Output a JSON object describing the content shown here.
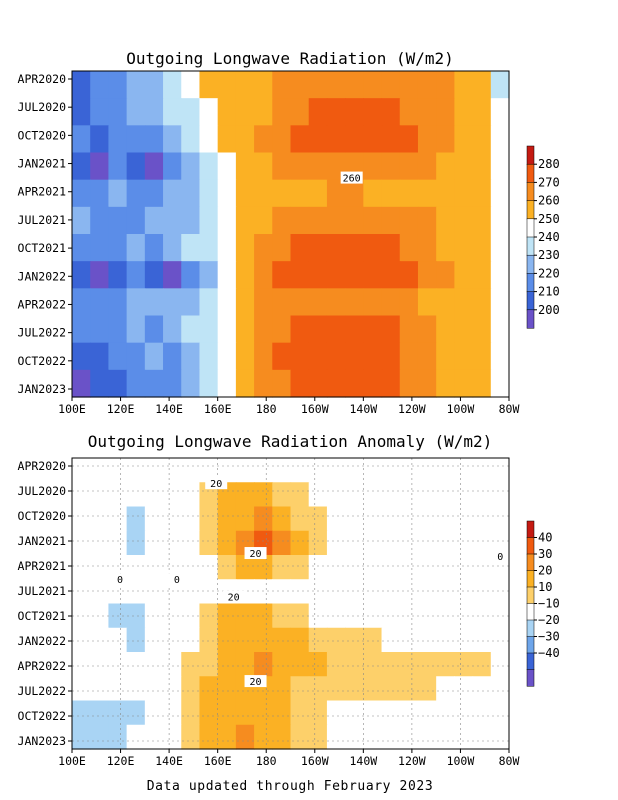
{
  "footer": "Data updated through February 2023",
  "chart_data": [
    {
      "type": "heatmap",
      "title": "Outgoing Longwave Radiation (W/m2)",
      "x_ticks": [
        "100E",
        "120E",
        "140E",
        "160E",
        "180",
        "160W",
        "140W",
        "120W",
        "100W",
        "80W"
      ],
      "y_ticks": [
        "APR2020",
        "JUL2020",
        "OCT2020",
        "JAN2021",
        "APR2021",
        "JUL2021",
        "OCT2021",
        "JAN2022",
        "APR2022",
        "JUL2022",
        "OCT2022",
        "JAN2023"
      ],
      "colorbar_levels": [
        "200",
        "210",
        "220",
        "230",
        "240",
        "250",
        "260",
        "270",
        "280"
      ],
      "colors": [
        "#6a52c8",
        "#3a64d6",
        "#5b8de8",
        "#8ab6f0",
        "#bfe4f6",
        "#ffffff",
        "#fbb124",
        "#f68c1f",
        "#f05a10",
        "#c41a12"
      ],
      "contour_labels": [
        "260"
      ],
      "rows": [
        [
          1,
          2,
          2,
          3,
          3,
          4,
          5,
          6,
          6,
          6,
          6,
          7,
          7,
          7,
          7,
          7,
          7,
          7,
          7,
          7,
          7,
          6,
          6,
          4
        ],
        [
          1,
          2,
          2,
          3,
          3,
          4,
          4,
          5,
          6,
          6,
          6,
          7,
          7,
          8,
          8,
          8,
          8,
          8,
          7,
          7,
          7,
          6,
          6,
          5
        ],
        [
          2,
          1,
          2,
          2,
          2,
          3,
          4,
          5,
          6,
          6,
          7,
          7,
          8,
          8,
          8,
          8,
          8,
          8,
          8,
          7,
          7,
          6,
          6,
          5
        ],
        [
          1,
          0,
          2,
          1,
          0,
          2,
          3,
          4,
          5,
          6,
          6,
          7,
          7,
          7,
          7,
          7,
          7,
          7,
          7,
          7,
          6,
          6,
          6,
          5
        ],
        [
          2,
          2,
          3,
          2,
          2,
          3,
          3,
          4,
          5,
          6,
          6,
          6,
          6,
          6,
          7,
          7,
          6,
          6,
          6,
          6,
          6,
          6,
          6,
          5
        ],
        [
          3,
          2,
          2,
          2,
          3,
          3,
          3,
          4,
          5,
          6,
          6,
          7,
          7,
          7,
          7,
          7,
          7,
          7,
          7,
          7,
          6,
          6,
          6,
          5
        ],
        [
          2,
          2,
          2,
          3,
          2,
          3,
          4,
          4,
          5,
          6,
          7,
          7,
          8,
          8,
          8,
          8,
          8,
          8,
          7,
          7,
          6,
          6,
          6,
          5
        ],
        [
          1,
          0,
          1,
          2,
          1,
          0,
          2,
          3,
          5,
          6,
          7,
          8,
          8,
          8,
          8,
          8,
          8,
          8,
          8,
          7,
          7,
          6,
          6,
          5
        ],
        [
          2,
          2,
          2,
          3,
          3,
          3,
          3,
          4,
          5,
          6,
          7,
          7,
          7,
          7,
          7,
          7,
          7,
          7,
          7,
          6,
          6,
          6,
          6,
          5
        ],
        [
          2,
          2,
          2,
          3,
          2,
          3,
          4,
          4,
          5,
          6,
          7,
          7,
          8,
          8,
          8,
          8,
          8,
          8,
          7,
          7,
          6,
          6,
          6,
          5
        ],
        [
          1,
          1,
          2,
          2,
          3,
          2,
          3,
          4,
          5,
          6,
          7,
          8,
          8,
          8,
          8,
          8,
          8,
          8,
          7,
          7,
          6,
          6,
          6,
          5
        ],
        [
          0,
          1,
          1,
          2,
          2,
          2,
          3,
          4,
          5,
          6,
          7,
          7,
          8,
          8,
          8,
          8,
          8,
          8,
          7,
          7,
          6,
          6,
          6,
          5
        ]
      ]
    },
    {
      "type": "heatmap",
      "title": "Outgoing Longwave Radiation Anomaly (W/m2)",
      "x_ticks": [
        "100E",
        "120E",
        "140E",
        "160E",
        "180",
        "160W",
        "140W",
        "120W",
        "100W",
        "80W"
      ],
      "y_ticks": [
        "APR2020",
        "JUL2020",
        "OCT2020",
        "JAN2021",
        "APR2021",
        "JUL2021",
        "OCT2021",
        "JAN2022",
        "APR2022",
        "JUL2022",
        "OCT2022",
        "JAN2023"
      ],
      "colorbar_levels": [
        "40",
        "30",
        "20",
        "10",
        "−10",
        "−20",
        "−30",
        "−40"
      ],
      "colors": [
        "#c41a12",
        "#f05a10",
        "#f68c1f",
        "#fbb124",
        "#fdd06a",
        "#ffffff",
        "#a9d4f4",
        "#6ea5ea",
        "#3a64d6",
        "#6a52c8"
      ],
      "contour_labels": [
        "20",
        "20",
        "20",
        "20",
        "0",
        "0",
        "0"
      ],
      "rows": [
        [
          5,
          5,
          5,
          5,
          5,
          5,
          5,
          5,
          5,
          5,
          5,
          5,
          5,
          5,
          5,
          5,
          5,
          5,
          5,
          5,
          5,
          5,
          5,
          5
        ],
        [
          5,
          5,
          5,
          5,
          5,
          5,
          5,
          4,
          3,
          3,
          3,
          4,
          4,
          5,
          5,
          5,
          5,
          5,
          5,
          5,
          5,
          5,
          5,
          5
        ],
        [
          5,
          5,
          5,
          6,
          5,
          5,
          5,
          4,
          3,
          3,
          2,
          3,
          4,
          4,
          5,
          5,
          5,
          5,
          5,
          5,
          5,
          5,
          5,
          5
        ],
        [
          5,
          5,
          5,
          6,
          5,
          5,
          5,
          4,
          3,
          2,
          1,
          2,
          3,
          4,
          5,
          5,
          5,
          5,
          5,
          5,
          5,
          5,
          5,
          5
        ],
        [
          5,
          5,
          5,
          5,
          5,
          5,
          5,
          5,
          4,
          3,
          3,
          4,
          4,
          5,
          5,
          5,
          5,
          5,
          5,
          5,
          5,
          5,
          5,
          5
        ],
        [
          5,
          5,
          5,
          5,
          5,
          5,
          5,
          5,
          5,
          5,
          5,
          5,
          5,
          5,
          5,
          5,
          5,
          5,
          5,
          5,
          5,
          5,
          5,
          5
        ],
        [
          5,
          5,
          6,
          6,
          5,
          5,
          5,
          4,
          3,
          3,
          3,
          4,
          4,
          5,
          5,
          5,
          5,
          5,
          5,
          5,
          5,
          5,
          5,
          5
        ],
        [
          5,
          5,
          5,
          6,
          5,
          5,
          5,
          4,
          3,
          3,
          3,
          3,
          3,
          4,
          4,
          4,
          4,
          5,
          5,
          5,
          5,
          5,
          5,
          5
        ],
        [
          5,
          5,
          5,
          5,
          5,
          5,
          4,
          4,
          3,
          3,
          2,
          3,
          3,
          3,
          4,
          4,
          4,
          4,
          4,
          4,
          4,
          4,
          4,
          5
        ],
        [
          5,
          5,
          5,
          5,
          5,
          5,
          4,
          3,
          3,
          3,
          3,
          3,
          4,
          4,
          4,
          4,
          4,
          4,
          4,
          4,
          5,
          5,
          5,
          5
        ],
        [
          6,
          6,
          6,
          6,
          5,
          5,
          4,
          3,
          3,
          3,
          3,
          3,
          4,
          4,
          5,
          5,
          5,
          5,
          5,
          5,
          5,
          5,
          5,
          5
        ],
        [
          6,
          6,
          6,
          5,
          5,
          5,
          4,
          3,
          3,
          2,
          3,
          3,
          4,
          4,
          5,
          5,
          5,
          5,
          5,
          5,
          5,
          5,
          5,
          5
        ]
      ]
    }
  ]
}
